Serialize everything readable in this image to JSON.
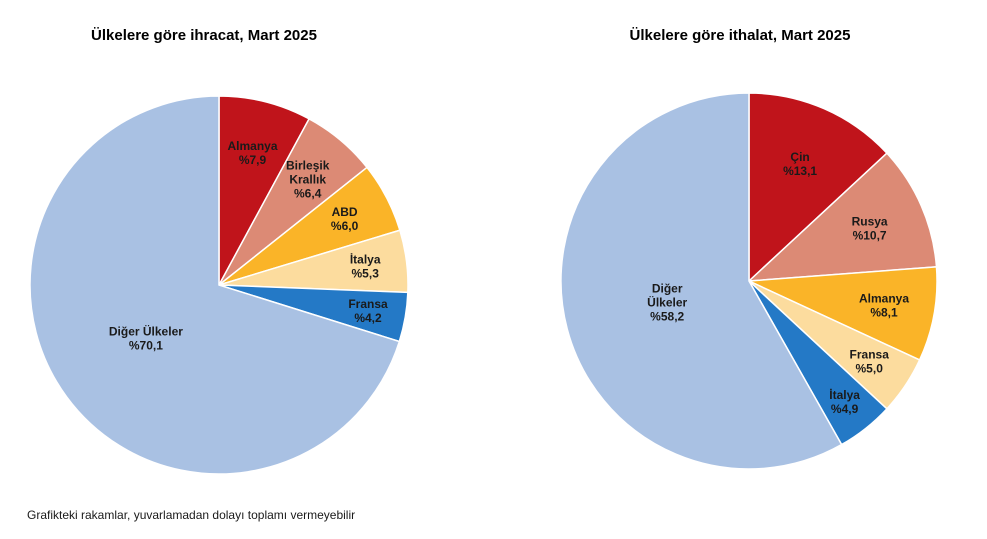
{
  "chart_data": [
    {
      "type": "pie",
      "title": "Ülkelere göre ihracat, Mart 2025",
      "slices": [
        {
          "label": [
            "Almanya"
          ],
          "value_text": "%7,9",
          "value": 7.9,
          "color": "#C0141B"
        },
        {
          "label": [
            "Birleşik",
            "Krallık"
          ],
          "value_text": "%6,4",
          "value": 6.4,
          "color": "#DC8A75"
        },
        {
          "label": [
            "ABD"
          ],
          "value_text": "%6,0",
          "value": 6.0,
          "color": "#FAB428"
        },
        {
          "label": [
            "İtalya"
          ],
          "value_text": "%5,3",
          "value": 5.3,
          "color": "#FCDC9E"
        },
        {
          "label": [
            "Fransa"
          ],
          "value_text": "%4,2",
          "value": 4.2,
          "color": "#2479C6"
        },
        {
          "label": [
            "Diğer Ülkeler"
          ],
          "value_text": "%70,1",
          "value": 70.1,
          "color": "#A9C1E3"
        }
      ]
    },
    {
      "type": "pie",
      "title": "Ülkelere göre ithalat, Mart 2025",
      "slices": [
        {
          "label": [
            "Çin"
          ],
          "value_text": "%13,1",
          "value": 13.1,
          "color": "#C0141B"
        },
        {
          "label": [
            "Rusya"
          ],
          "value_text": "%10,7",
          "value": 10.7,
          "color": "#DC8A75"
        },
        {
          "label": [
            "Almanya"
          ],
          "value_text": "%8,1",
          "value": 8.1,
          "color": "#FAB428"
        },
        {
          "label": [
            "Fransa"
          ],
          "value_text": "%5,0",
          "value": 5.0,
          "color": "#FCDC9E"
        },
        {
          "label": [
            "İtalya"
          ],
          "value_text": "%4,9",
          "value": 4.9,
          "color": "#2479C6"
        },
        {
          "label": [
            "Diğer",
            "Ülkeler"
          ],
          "value_text": "%58,2",
          "value": 58.2,
          "color": "#A9C1E3"
        }
      ]
    }
  ],
  "footnote": "Grafikteki rakamlar, yuvarlamadan dolayı toplamı vermeyebilir"
}
